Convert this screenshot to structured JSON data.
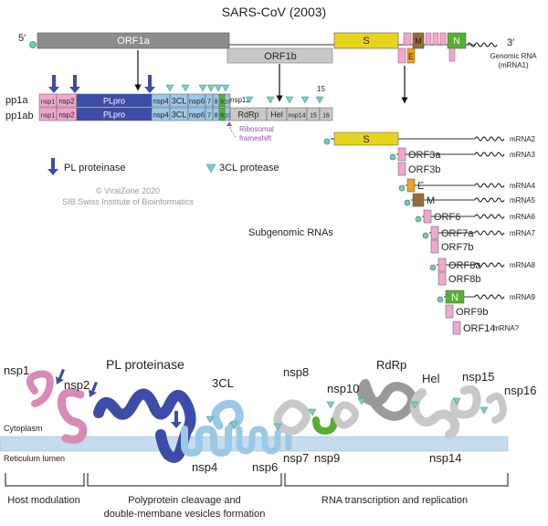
{
  "title": "SARS-CoV (2003)",
  "genome": {
    "five_prime": "5′",
    "three_prime": "3′",
    "orf1a": "ORF1a",
    "orf1b": "ORF1b",
    "s": "S",
    "e": "E",
    "m": "M",
    "n": "N",
    "genomic_label_line1": "Genomic RNA",
    "genomic_label_line2": "(mRNA1)"
  },
  "polyproteins": {
    "pp1a_label": "pp1a",
    "pp1ab_label": "pp1ab",
    "pp1a_segments": [
      "nsp1",
      "nsp2",
      "PLpro",
      "nsp4",
      "3CL",
      "nsp6",
      "7",
      "8",
      "9",
      "10"
    ],
    "pp1ab_segments": [
      "nsp1",
      "nsp2",
      "PLpro",
      "nsp4",
      "3CL",
      "nsp6",
      "7",
      "8",
      "9",
      "10",
      "RdRp",
      "Hel",
      "nsp14",
      "15",
      "16"
    ],
    "nsp11": "nsp11",
    "n15": "15",
    "frameshift_line1": "Ribosomal",
    "frameshift_line2": "frameshift"
  },
  "legend": {
    "pl": "PL proteinase",
    "cl": "3CL protease"
  },
  "credit": {
    "line1": "© ViralZone 2020",
    "line2": "SIB Swiss Institute of Bioinformatics"
  },
  "subgenomic_title": "Subgenomic RNAs",
  "subgenomic": [
    {
      "gene": "S",
      "mrna": "mRNA2"
    },
    {
      "gene": "ORF3a",
      "mrna": "mRNA3"
    },
    {
      "gene": "ORF3b",
      "mrna": ""
    },
    {
      "gene": "E",
      "mrna": "mRNA4"
    },
    {
      "gene": "M",
      "mrna": "mRNA5"
    },
    {
      "gene": "ORF6",
      "mrna": "mRNA6"
    },
    {
      "gene": "ORF7a",
      "mrna": "mRNA7"
    },
    {
      "gene": "ORF7b",
      "mrna": ""
    },
    {
      "gene": "ORF8a",
      "mrna": "mRNA8"
    },
    {
      "gene": "ORF8b",
      "mrna": ""
    },
    {
      "gene": "N",
      "mrna": "mRNA9"
    },
    {
      "gene": "ORF9b",
      "mrna": ""
    },
    {
      "gene": "ORF14",
      "mrna": "mRNA?"
    }
  ],
  "membrane": {
    "nsp1": "nsp1",
    "nsp2": "nsp2",
    "pl_proteinase": "PL proteinase",
    "cl3": "3CL",
    "nsp8": "nsp8",
    "nsp10": "nsp10",
    "rdrp": "RdRp",
    "hel": "Hel",
    "nsp15": "nsp15",
    "nsp16": "nsp16",
    "cytoplasm": "Cytoplasm",
    "lumen": "Reticulum lumen",
    "nsp4": "nsp4",
    "nsp6": "nsp6",
    "nsp7": "nsp7",
    "nsp9": "nsp9",
    "nsp14": "nsp14"
  },
  "groups": {
    "host": "Host modulation",
    "cleavage_line1": "Polyprotein cleavage and",
    "cleavage_line2": "double-membane vesicles formation",
    "rna": "RNA transcription and replication"
  },
  "colors": {
    "orf_gray": "#8c8c8c",
    "orf1b_gray": "#c8c8c8",
    "s_yellow": "#e8d41c",
    "pink": "#f0a8cc",
    "pl_blue": "#3c4ca8",
    "light_blue": "#9cc8e8",
    "green": "#56b030",
    "brown": "#9a6a3c",
    "orange": "#f0a020",
    "teal": "#7cccc8",
    "membrane": "#c4dcec"
  }
}
